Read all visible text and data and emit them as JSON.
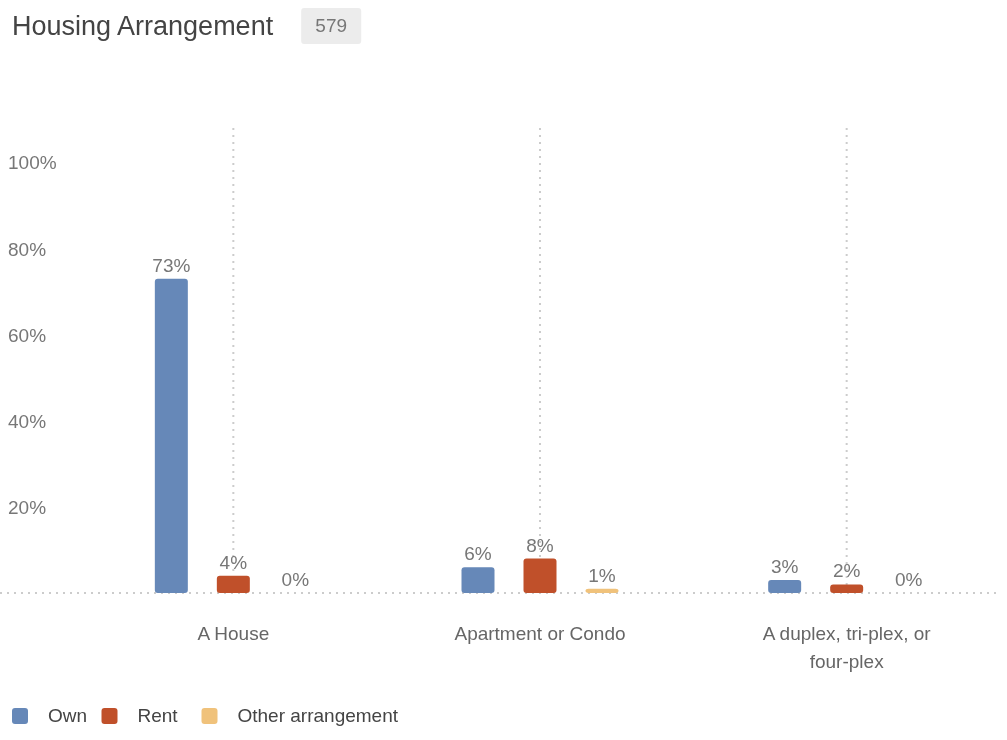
{
  "chart_data": {
    "type": "bar",
    "title": "Housing Arrangement",
    "subtitle": "579",
    "categories": [
      "A House",
      "Apartment or Condo",
      "A duplex, tri-plex, or four-plex"
    ],
    "series": [
      {
        "name": "Own",
        "color": "#6688b8",
        "values": [
          73,
          6,
          3
        ]
      },
      {
        "name": "Rent",
        "color": "#c0502a",
        "values": [
          4,
          8,
          2
        ]
      },
      {
        "name": "Other arrangement",
        "color": "#f0c27b",
        "values": [
          0,
          1,
          0
        ]
      }
    ],
    "value_labels": [
      [
        "73%",
        "6%",
        "3%"
      ],
      [
        "4%",
        "8%",
        "2%"
      ],
      [
        "0%",
        "1%",
        "0%"
      ]
    ],
    "ylim": [
      0,
      108
    ],
    "yticks": [
      {
        "value": 20,
        "label": "20%"
      },
      {
        "value": 40,
        "label": "40%"
      },
      {
        "value": 60,
        "label": "60%"
      },
      {
        "value": 80,
        "label": "80%"
      },
      {
        "value": 100,
        "label": "100%"
      }
    ],
    "grid": "x",
    "legend": "bottom left"
  }
}
